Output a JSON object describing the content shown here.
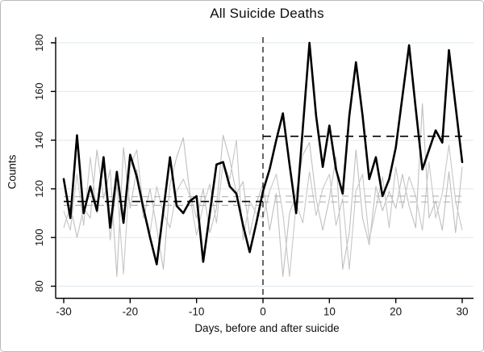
{
  "chart_data": {
    "type": "line",
    "title": "All Suicide Deaths",
    "xlabel": "Days, before and after suicide",
    "ylabel": "Counts",
    "x_ticks": [
      -30,
      -20,
      -10,
      0,
      10,
      20,
      30
    ],
    "y_ticks": [
      80,
      100,
      120,
      140,
      160,
      180
    ],
    "xlim": [
      -31.2,
      31.6
    ],
    "ylim": [
      75,
      182
    ],
    "grid": "horizontal-light",
    "legend": "none",
    "x": [
      -30,
      -29,
      -28,
      -27,
      -26,
      -25,
      -24,
      -23,
      -22,
      -21,
      -20,
      -19,
      -18,
      -17,
      -16,
      -15,
      -14,
      -13,
      -12,
      -11,
      -10,
      -9,
      -8,
      -7,
      -6,
      -5,
      -4,
      -3,
      -2,
      -1,
      0,
      1,
      2,
      3,
      4,
      5,
      6,
      7,
      8,
      9,
      10,
      11,
      12,
      13,
      14,
      15,
      16,
      17,
      18,
      19,
      20,
      21,
      22,
      23,
      24,
      25,
      26,
      27,
      28,
      29,
      30
    ],
    "series": [
      {
        "name": "all-suicide-deaths",
        "role": "main",
        "color": "#000000",
        "width": 2.6,
        "values": [
          124,
          108,
          142,
          110,
          121,
          111,
          133,
          104,
          127,
          106,
          134,
          125,
          112,
          100,
          89,
          111,
          133,
          113,
          110,
          115,
          117,
          90,
          110,
          130,
          131,
          121,
          118,
          105,
          94,
          106,
          119,
          128,
          140,
          151,
          130,
          110,
          145,
          180,
          150,
          129,
          146,
          128,
          118,
          150,
          172,
          150,
          124,
          133,
          117,
          124,
          137,
          158,
          179,
          153,
          128,
          136,
          144,
          139,
          177,
          154,
          131
        ]
      },
      {
        "name": "comparison-series-1",
        "role": "comparison",
        "color": "#bfbfbf",
        "width": 1.1,
        "values": [
          104,
          113,
          100,
          112,
          108,
          136,
          116,
          128,
          84,
          137,
          112,
          128,
          108,
          120,
          104,
          87,
          122,
          133,
          141,
          118,
          108,
          120,
          102,
          112,
          142,
          132,
          118,
          123,
          101,
          114,
          122,
          103,
          118,
          84,
          110,
          118,
          134,
          139,
          116,
          103,
          116,
          133,
          87,
          102,
          136,
          108,
          97,
          121,
          111,
          119,
          112,
          126,
          113,
          104,
          155,
          108,
          115,
          103,
          127,
          102,
          129
        ]
      },
      {
        "name": "comparison-series-2",
        "role": "comparison",
        "color": "#c7c7c7",
        "width": 1.1,
        "values": [
          111,
          103,
          126,
          105,
          133,
          110,
          130,
          99,
          122,
          85,
          129,
          136,
          112,
          102,
          121,
          110,
          104,
          119,
          124,
          117,
          101,
          113,
          122,
          106,
          131,
          124,
          140,
          99,
          115,
          110,
          108,
          119,
          126,
          110,
          84,
          114,
          106,
          127,
          109,
          120,
          126,
          105,
          116,
          87,
          119,
          126,
          99,
          112,
          125,
          104,
          129,
          112,
          125,
          117,
          103,
          131,
          108,
          118,
          138,
          115,
          103
        ]
      }
    ],
    "event_line": {
      "x": 0,
      "style": "dashed",
      "color": "#404040"
    },
    "mean_lines": [
      {
        "series": "all-suicide-deaths",
        "period": "before",
        "x_range": [
          -30,
          0
        ],
        "value": 114.8,
        "color": "#000000"
      },
      {
        "series": "all-suicide-deaths",
        "period": "after",
        "x_range": [
          0,
          30
        ],
        "value": 141.6,
        "color": "#000000"
      },
      {
        "series": "comparison-series-1",
        "period": "before",
        "x_range": [
          -30,
          0
        ],
        "value": 116.8,
        "color": "#b3b3b3"
      },
      {
        "series": "comparison-series-1",
        "period": "after",
        "x_range": [
          0,
          30
        ],
        "value": 117.0,
        "color": "#b3b3b3"
      },
      {
        "series": "comparison-series-2",
        "period": "before",
        "x_range": [
          -30,
          0
        ],
        "value": 113.2,
        "color": "#b3b3b3"
      },
      {
        "series": "comparison-series-2",
        "period": "after",
        "x_range": [
          0,
          30
        ],
        "value": 114.6,
        "color": "#b3b3b3"
      }
    ],
    "colors": {
      "gridline": "#e2edf3",
      "axis": "#000000",
      "background": "#ffffff"
    }
  }
}
